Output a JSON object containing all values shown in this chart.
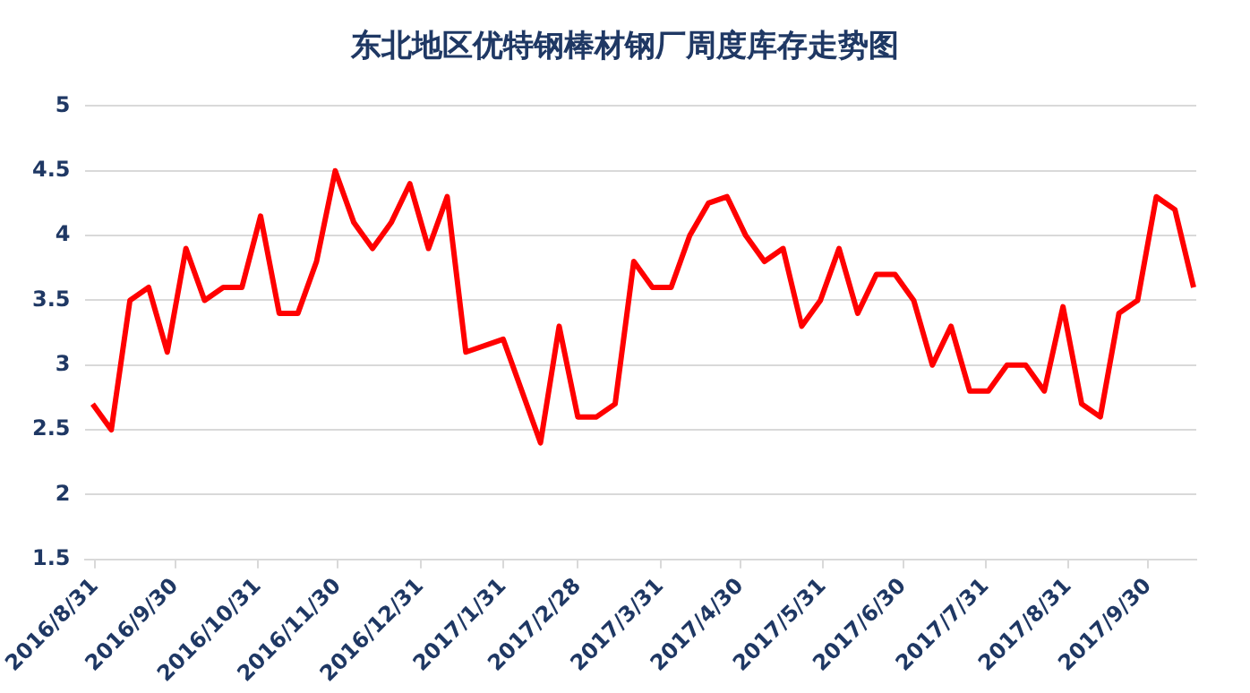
{
  "chart_data": {
    "type": "line",
    "title": "东北地区优特钢棒材钢厂周度库存走势图",
    "x": [
      "2016-08-30",
      "2016-09-06",
      "2016-09-13",
      "2016-09-20",
      "2016-09-27",
      "2016-10-04",
      "2016-10-11",
      "2016-10-18",
      "2016-10-25",
      "2016-11-01",
      "2016-11-08",
      "2016-11-15",
      "2016-11-22",
      "2016-11-29",
      "2016-12-06",
      "2016-12-13",
      "2016-12-20",
      "2016-12-27",
      "2017-01-03",
      "2017-01-10",
      "2017-01-17",
      "2017-01-31",
      "2017-02-14",
      "2017-02-21",
      "2017-02-28",
      "2017-03-07",
      "2017-03-14",
      "2017-03-21",
      "2017-03-28",
      "2017-04-04",
      "2017-04-11",
      "2017-04-18",
      "2017-04-25",
      "2017-05-02",
      "2017-05-09",
      "2017-05-16",
      "2017-05-23",
      "2017-05-30",
      "2017-06-06",
      "2017-06-13",
      "2017-06-20",
      "2017-06-27",
      "2017-07-04",
      "2017-07-11",
      "2017-07-18",
      "2017-07-25",
      "2017-08-01",
      "2017-08-08",
      "2017-08-15",
      "2017-08-22",
      "2017-08-29",
      "2017-09-05",
      "2017-09-12",
      "2017-09-19",
      "2017-09-26",
      "2017-10-03",
      "2017-10-10",
      "2017-10-17"
    ],
    "series": [
      {
        "color": "#ff0000",
        "values": [
          2.7,
          2.5,
          3.5,
          3.6,
          3.1,
          3.9,
          3.5,
          3.6,
          3.6,
          4.15,
          3.4,
          3.4,
          3.8,
          4.5,
          4.1,
          3.9,
          4.1,
          4.4,
          3.9,
          4.3,
          3.1,
          3.2,
          2.4,
          3.3,
          2.6,
          2.6,
          2.7,
          3.8,
          3.6,
          3.6,
          4.0,
          4.25,
          4.3,
          4.0,
          3.8,
          3.9,
          3.3,
          3.5,
          3.9,
          3.4,
          3.7,
          3.7,
          3.5,
          3.0,
          3.3,
          2.8,
          2.8,
          3.0,
          3.0,
          2.8,
          3.45,
          2.7,
          2.6,
          3.4,
          3.5,
          4.3,
          4.2,
          3.6
        ]
      }
    ],
    "xlim": [
      "2016-08-27",
      "2017-10-18"
    ],
    "xticks": [
      {
        "value": "2016-08-31",
        "label": "2016/8/31"
      },
      {
        "value": "2016-09-30",
        "label": "2016/9/30"
      },
      {
        "value": "2016-10-31",
        "label": "2016/10/31"
      },
      {
        "value": "2016-11-30",
        "label": "2016/11/30"
      },
      {
        "value": "2016-12-31",
        "label": "2016/12/31"
      },
      {
        "value": "2017-01-31",
        "label": "2017/1/31"
      },
      {
        "value": "2017-02-28",
        "label": "2017/2/28"
      },
      {
        "value": "2017-03-31",
        "label": "2017/3/31"
      },
      {
        "value": "2017-04-30",
        "label": "2017/4/30"
      },
      {
        "value": "2017-05-31",
        "label": "2017/5/31"
      },
      {
        "value": "2017-06-30",
        "label": "2017/6/30"
      },
      {
        "value": "2017-07-31",
        "label": "2017/7/31"
      },
      {
        "value": "2017-08-31",
        "label": "2017/8/31"
      },
      {
        "value": "2017-09-30",
        "label": "2017/9/30"
      }
    ],
    "ylim": [
      1.5,
      5
    ],
    "yticks": [
      1.5,
      2,
      2.5,
      3,
      3.5,
      4,
      4.5,
      5
    ],
    "grid": "y",
    "legend": false,
    "marker": "none",
    "line_style": "solid"
  }
}
